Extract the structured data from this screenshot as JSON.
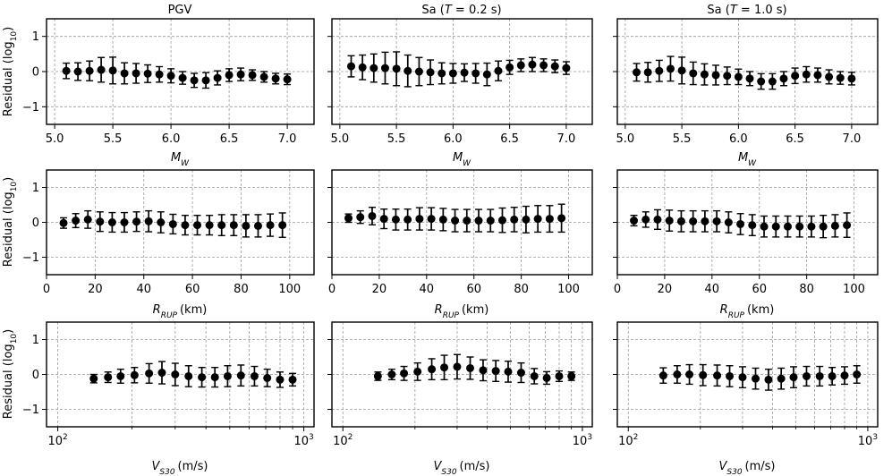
{
  "figure": {
    "ylabel": "Residual (log10)",
    "ylim": [
      -1.5,
      1.5
    ],
    "yticks": [
      -1,
      0,
      1
    ],
    "titles": [
      "PGV",
      "Sa (T = 0.2 s)",
      "Sa (T = 1.0 s)"
    ]
  },
  "rows": [
    {
      "name": "mw",
      "xlabel_main": "M",
      "xlabel_sub": "W",
      "xlabel_unit": "",
      "scale": "linear",
      "xlim": [
        4.93,
        7.23
      ],
      "xticks": [
        5.0,
        5.5,
        6.0,
        6.5,
        7.0
      ],
      "xtick_labels": [
        "5.0",
        "5.5",
        "6.0",
        "6.5",
        "7.0"
      ]
    },
    {
      "name": "rrup",
      "xlabel_main": "R",
      "xlabel_sub": "RUP",
      "xlabel_unit": "(km)",
      "scale": "linear",
      "xlim": [
        0,
        110
      ],
      "xticks": [
        0,
        20,
        40,
        60,
        80,
        100
      ],
      "xtick_labels": [
        "0",
        "20",
        "40",
        "60",
        "80",
        "100"
      ]
    },
    {
      "name": "vs30",
      "xlabel_main": "V",
      "xlabel_sub": "S30",
      "xlabel_unit": "(m/s)",
      "scale": "log",
      "xlim": [
        90,
        1100
      ],
      "xticks": [
        100,
        1000
      ],
      "xtick_labels": [
        "10",
        "10"
      ],
      "xtick_exponents": [
        "2",
        "3"
      ],
      "minor_ticks": [
        200,
        300,
        400,
        500,
        600,
        700,
        800,
        900
      ]
    }
  ],
  "chart_data": [
    {
      "type": "errorbar",
      "title": "PGV",
      "xvar": "MW",
      "x": [
        5.1,
        5.2,
        5.3,
        5.4,
        5.5,
        5.6,
        5.7,
        5.8,
        5.9,
        6.0,
        6.1,
        6.2,
        6.3,
        6.4,
        6.5,
        6.6,
        6.7,
        6.8,
        6.9,
        7.0
      ],
      "mean": [
        0.02,
        0.0,
        0.02,
        0.05,
        0.03,
        -0.05,
        -0.05,
        -0.06,
        -0.08,
        -0.12,
        -0.18,
        -0.25,
        -0.25,
        -0.18,
        -0.1,
        -0.08,
        -0.1,
        -0.15,
        -0.2,
        -0.22
      ],
      "err": [
        0.22,
        0.25,
        0.28,
        0.35,
        0.38,
        0.3,
        0.28,
        0.25,
        0.22,
        0.2,
        0.18,
        0.2,
        0.22,
        0.2,
        0.18,
        0.18,
        0.15,
        0.15,
        0.15,
        0.15
      ]
    },
    {
      "type": "errorbar",
      "title": "Sa (T = 0.2 s)",
      "xvar": "MW",
      "x": [
        5.1,
        5.2,
        5.3,
        5.4,
        5.5,
        5.6,
        5.7,
        5.8,
        5.9,
        6.0,
        6.1,
        6.2,
        6.3,
        6.4,
        6.5,
        6.6,
        6.7,
        6.8,
        6.9,
        7.0
      ],
      "mean": [
        0.15,
        0.12,
        0.1,
        0.1,
        0.08,
        0.02,
        0.0,
        -0.02,
        -0.05,
        -0.05,
        -0.03,
        -0.05,
        -0.08,
        0.02,
        0.12,
        0.18,
        0.2,
        0.18,
        0.15,
        0.1
      ],
      "err": [
        0.3,
        0.35,
        0.4,
        0.45,
        0.48,
        0.45,
        0.4,
        0.35,
        0.3,
        0.28,
        0.25,
        0.28,
        0.32,
        0.28,
        0.2,
        0.18,
        0.2,
        0.18,
        0.18,
        0.18
      ]
    },
    {
      "type": "errorbar",
      "title": "Sa (T = 1.0 s)",
      "xvar": "MW",
      "x": [
        5.1,
        5.2,
        5.3,
        5.4,
        5.5,
        5.6,
        5.7,
        5.8,
        5.9,
        6.0,
        6.1,
        6.2,
        6.3,
        6.4,
        6.5,
        6.6,
        6.7,
        6.8,
        6.9,
        7.0
      ],
      "mean": [
        -0.02,
        -0.02,
        0.02,
        0.08,
        0.03,
        -0.05,
        -0.08,
        -0.1,
        -0.12,
        -0.15,
        -0.2,
        -0.28,
        -0.28,
        -0.2,
        -0.12,
        -0.08,
        -0.1,
        -0.15,
        -0.18,
        -0.2
      ],
      "err": [
        0.25,
        0.28,
        0.3,
        0.35,
        0.38,
        0.32,
        0.3,
        0.28,
        0.25,
        0.22,
        0.2,
        0.22,
        0.22,
        0.2,
        0.22,
        0.22,
        0.2,
        0.2,
        0.18,
        0.18
      ]
    },
    {
      "type": "errorbar",
      "title": "PGV",
      "xvar": "RRUP (km)",
      "x": [
        7,
        12,
        17,
        22,
        27,
        32,
        37,
        42,
        47,
        52,
        57,
        62,
        67,
        72,
        77,
        82,
        87,
        92,
        97
      ],
      "mean": [
        -0.02,
        0.05,
        0.08,
        0.02,
        0.0,
        0.0,
        0.02,
        0.03,
        0.0,
        -0.05,
        -0.08,
        -0.08,
        -0.08,
        -0.08,
        -0.08,
        -0.1,
        -0.1,
        -0.08,
        -0.08
      ],
      "err": [
        0.15,
        0.2,
        0.25,
        0.28,
        0.28,
        0.28,
        0.28,
        0.3,
        0.3,
        0.28,
        0.28,
        0.28,
        0.28,
        0.3,
        0.3,
        0.32,
        0.32,
        0.32,
        0.35
      ]
    },
    {
      "type": "errorbar",
      "title": "Sa (T = 0.2 s)",
      "xvar": "RRUP (km)",
      "x": [
        7,
        12,
        17,
        22,
        27,
        32,
        37,
        42,
        47,
        52,
        57,
        62,
        67,
        72,
        77,
        82,
        87,
        92,
        97
      ],
      "mean": [
        0.12,
        0.15,
        0.18,
        0.1,
        0.08,
        0.08,
        0.1,
        0.1,
        0.08,
        0.05,
        0.05,
        0.05,
        0.05,
        0.06,
        0.08,
        0.08,
        0.1,
        0.1,
        0.12
      ],
      "err": [
        0.12,
        0.18,
        0.25,
        0.28,
        0.3,
        0.3,
        0.32,
        0.32,
        0.32,
        0.32,
        0.32,
        0.32,
        0.32,
        0.35,
        0.35,
        0.38,
        0.38,
        0.38,
        0.4
      ]
    },
    {
      "type": "errorbar",
      "title": "Sa (T = 1.0 s)",
      "xvar": "RRUP (km)",
      "x": [
        7,
        12,
        17,
        22,
        27,
        32,
        37,
        42,
        47,
        52,
        57,
        62,
        67,
        72,
        77,
        82,
        87,
        92,
        97
      ],
      "mean": [
        0.05,
        0.08,
        0.08,
        0.05,
        0.03,
        0.03,
        0.03,
        0.03,
        0.0,
        -0.05,
        -0.08,
        -0.12,
        -0.12,
        -0.12,
        -0.12,
        -0.12,
        -0.12,
        -0.1,
        -0.08
      ],
      "err": [
        0.15,
        0.22,
        0.28,
        0.3,
        0.3,
        0.3,
        0.3,
        0.3,
        0.3,
        0.3,
        0.3,
        0.3,
        0.3,
        0.3,
        0.3,
        0.3,
        0.32,
        0.32,
        0.35
      ]
    },
    {
      "type": "errorbar",
      "title": "PGV",
      "xvar": "VS30 (m/s)",
      "xscale": "log",
      "x": [
        140,
        160,
        180,
        205,
        235,
        265,
        300,
        340,
        385,
        435,
        490,
        555,
        630,
        710,
        800,
        900
      ],
      "mean": [
        -0.12,
        -0.08,
        -0.05,
        -0.02,
        0.03,
        0.05,
        0.0,
        -0.05,
        -0.08,
        -0.08,
        -0.05,
        -0.03,
        -0.05,
        -0.1,
        -0.15,
        -0.15
      ],
      "err": [
        0.12,
        0.15,
        0.2,
        0.22,
        0.28,
        0.32,
        0.32,
        0.3,
        0.28,
        0.28,
        0.3,
        0.3,
        0.28,
        0.25,
        0.22,
        0.18
      ]
    },
    {
      "type": "errorbar",
      "title": "Sa (T = 0.2 s)",
      "xvar": "VS30 (m/s)",
      "xscale": "log",
      "x": [
        140,
        160,
        180,
        205,
        235,
        265,
        300,
        340,
        385,
        435,
        490,
        555,
        630,
        710,
        800,
        900
      ],
      "mean": [
        -0.05,
        0.0,
        0.03,
        0.08,
        0.15,
        0.2,
        0.22,
        0.18,
        0.12,
        0.1,
        0.08,
        0.05,
        -0.05,
        -0.1,
        -0.05,
        -0.05
      ],
      "err": [
        0.12,
        0.15,
        0.2,
        0.25,
        0.3,
        0.35,
        0.35,
        0.32,
        0.3,
        0.3,
        0.3,
        0.28,
        0.22,
        0.18,
        0.15,
        0.12
      ]
    },
    {
      "type": "errorbar",
      "title": "Sa (T = 1.0 s)",
      "xvar": "VS30 (m/s)",
      "xscale": "log",
      "x": [
        140,
        160,
        180,
        205,
        235,
        265,
        300,
        340,
        385,
        435,
        490,
        555,
        630,
        710,
        800,
        900
      ],
      "mean": [
        -0.03,
        0.0,
        0.0,
        -0.02,
        -0.03,
        -0.05,
        -0.08,
        -0.12,
        -0.15,
        -0.12,
        -0.08,
        -0.05,
        -0.05,
        -0.05,
        -0.03,
        0.0
      ],
      "err": [
        0.22,
        0.25,
        0.28,
        0.3,
        0.3,
        0.3,
        0.3,
        0.3,
        0.3,
        0.3,
        0.3,
        0.28,
        0.28,
        0.25,
        0.25,
        0.25
      ]
    }
  ]
}
